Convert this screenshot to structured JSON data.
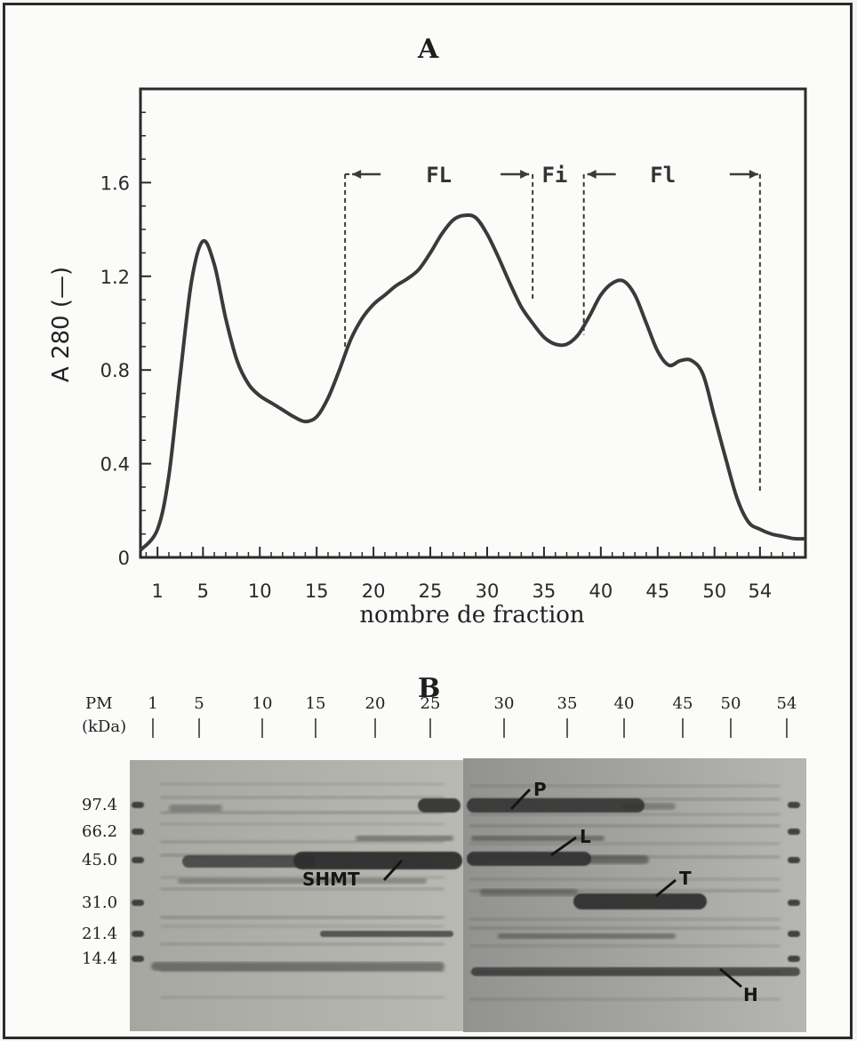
{
  "panel_a_label": "A",
  "panel_b_label": "B",
  "chart_data": [
    {
      "type": "line",
      "title": "",
      "xlabel": "nombre de fraction",
      "ylabel": "A 280 (—)",
      "xlim": [
        -0.5,
        58
      ],
      "ylim": [
        0,
        2.0
      ],
      "x_ticks": [
        1,
        5,
        10,
        15,
        20,
        25,
        30,
        35,
        40,
        45,
        50,
        54
      ],
      "y_ticks": [
        0,
        0.4,
        0.8,
        1.2,
        1.6
      ],
      "y_tick_labels": [
        "0",
        "0.4",
        "0.8",
        "1.2",
        "1.6"
      ],
      "grid": false,
      "series": [
        {
          "x": [
            -0.5,
            1,
            2,
            3,
            4,
            5,
            6,
            7,
            8,
            9,
            10,
            11,
            12,
            13,
            14,
            15,
            16,
            17,
            18,
            19,
            20,
            21,
            22,
            23,
            24,
            25,
            26,
            27,
            28,
            29,
            30,
            31,
            32,
            33,
            34,
            35,
            36,
            37,
            38,
            39,
            40,
            41,
            42,
            43,
            44,
            45,
            46,
            47,
            48,
            49,
            50,
            51,
            52,
            53,
            54,
            55,
            56,
            57,
            58
          ],
          "y": [
            0.03,
            0.12,
            0.35,
            0.78,
            1.18,
            1.35,
            1.25,
            1.02,
            0.84,
            0.74,
            0.69,
            0.66,
            0.63,
            0.6,
            0.58,
            0.6,
            0.68,
            0.8,
            0.93,
            1.02,
            1.08,
            1.12,
            1.16,
            1.19,
            1.23,
            1.3,
            1.38,
            1.44,
            1.46,
            1.45,
            1.38,
            1.28,
            1.17,
            1.07,
            1.0,
            0.94,
            0.91,
            0.91,
            0.95,
            1.03,
            1.12,
            1.17,
            1.18,
            1.12,
            1.0,
            0.88,
            0.82,
            0.84,
            0.84,
            0.78,
            0.6,
            0.42,
            0.25,
            0.15,
            0.12,
            0.1,
            0.09,
            0.08,
            0.08
          ]
        }
      ],
      "annotations": [
        {
          "text": "FL",
          "from": 17.5,
          "to": 34
        },
        {
          "text": "Fi",
          "from": 34,
          "to": 38
        },
        {
          "text": "Fl",
          "from": 38.5,
          "to": 54
        }
      ]
    },
    {
      "type": "gel",
      "lane_numbers": [
        "1",
        "5",
        "10",
        "15",
        "20",
        "25",
        "30",
        "35",
        "40",
        "45",
        "50",
        "54"
      ],
      "pm_label": "PM",
      "unit_label": "(kDa)",
      "markers": [
        "97.4",
        "66.2",
        "45.0",
        "31.0",
        "21.4",
        "14.4"
      ],
      "band_labels": [
        "P",
        "L",
        "T",
        "SHMT",
        "H"
      ]
    }
  ]
}
